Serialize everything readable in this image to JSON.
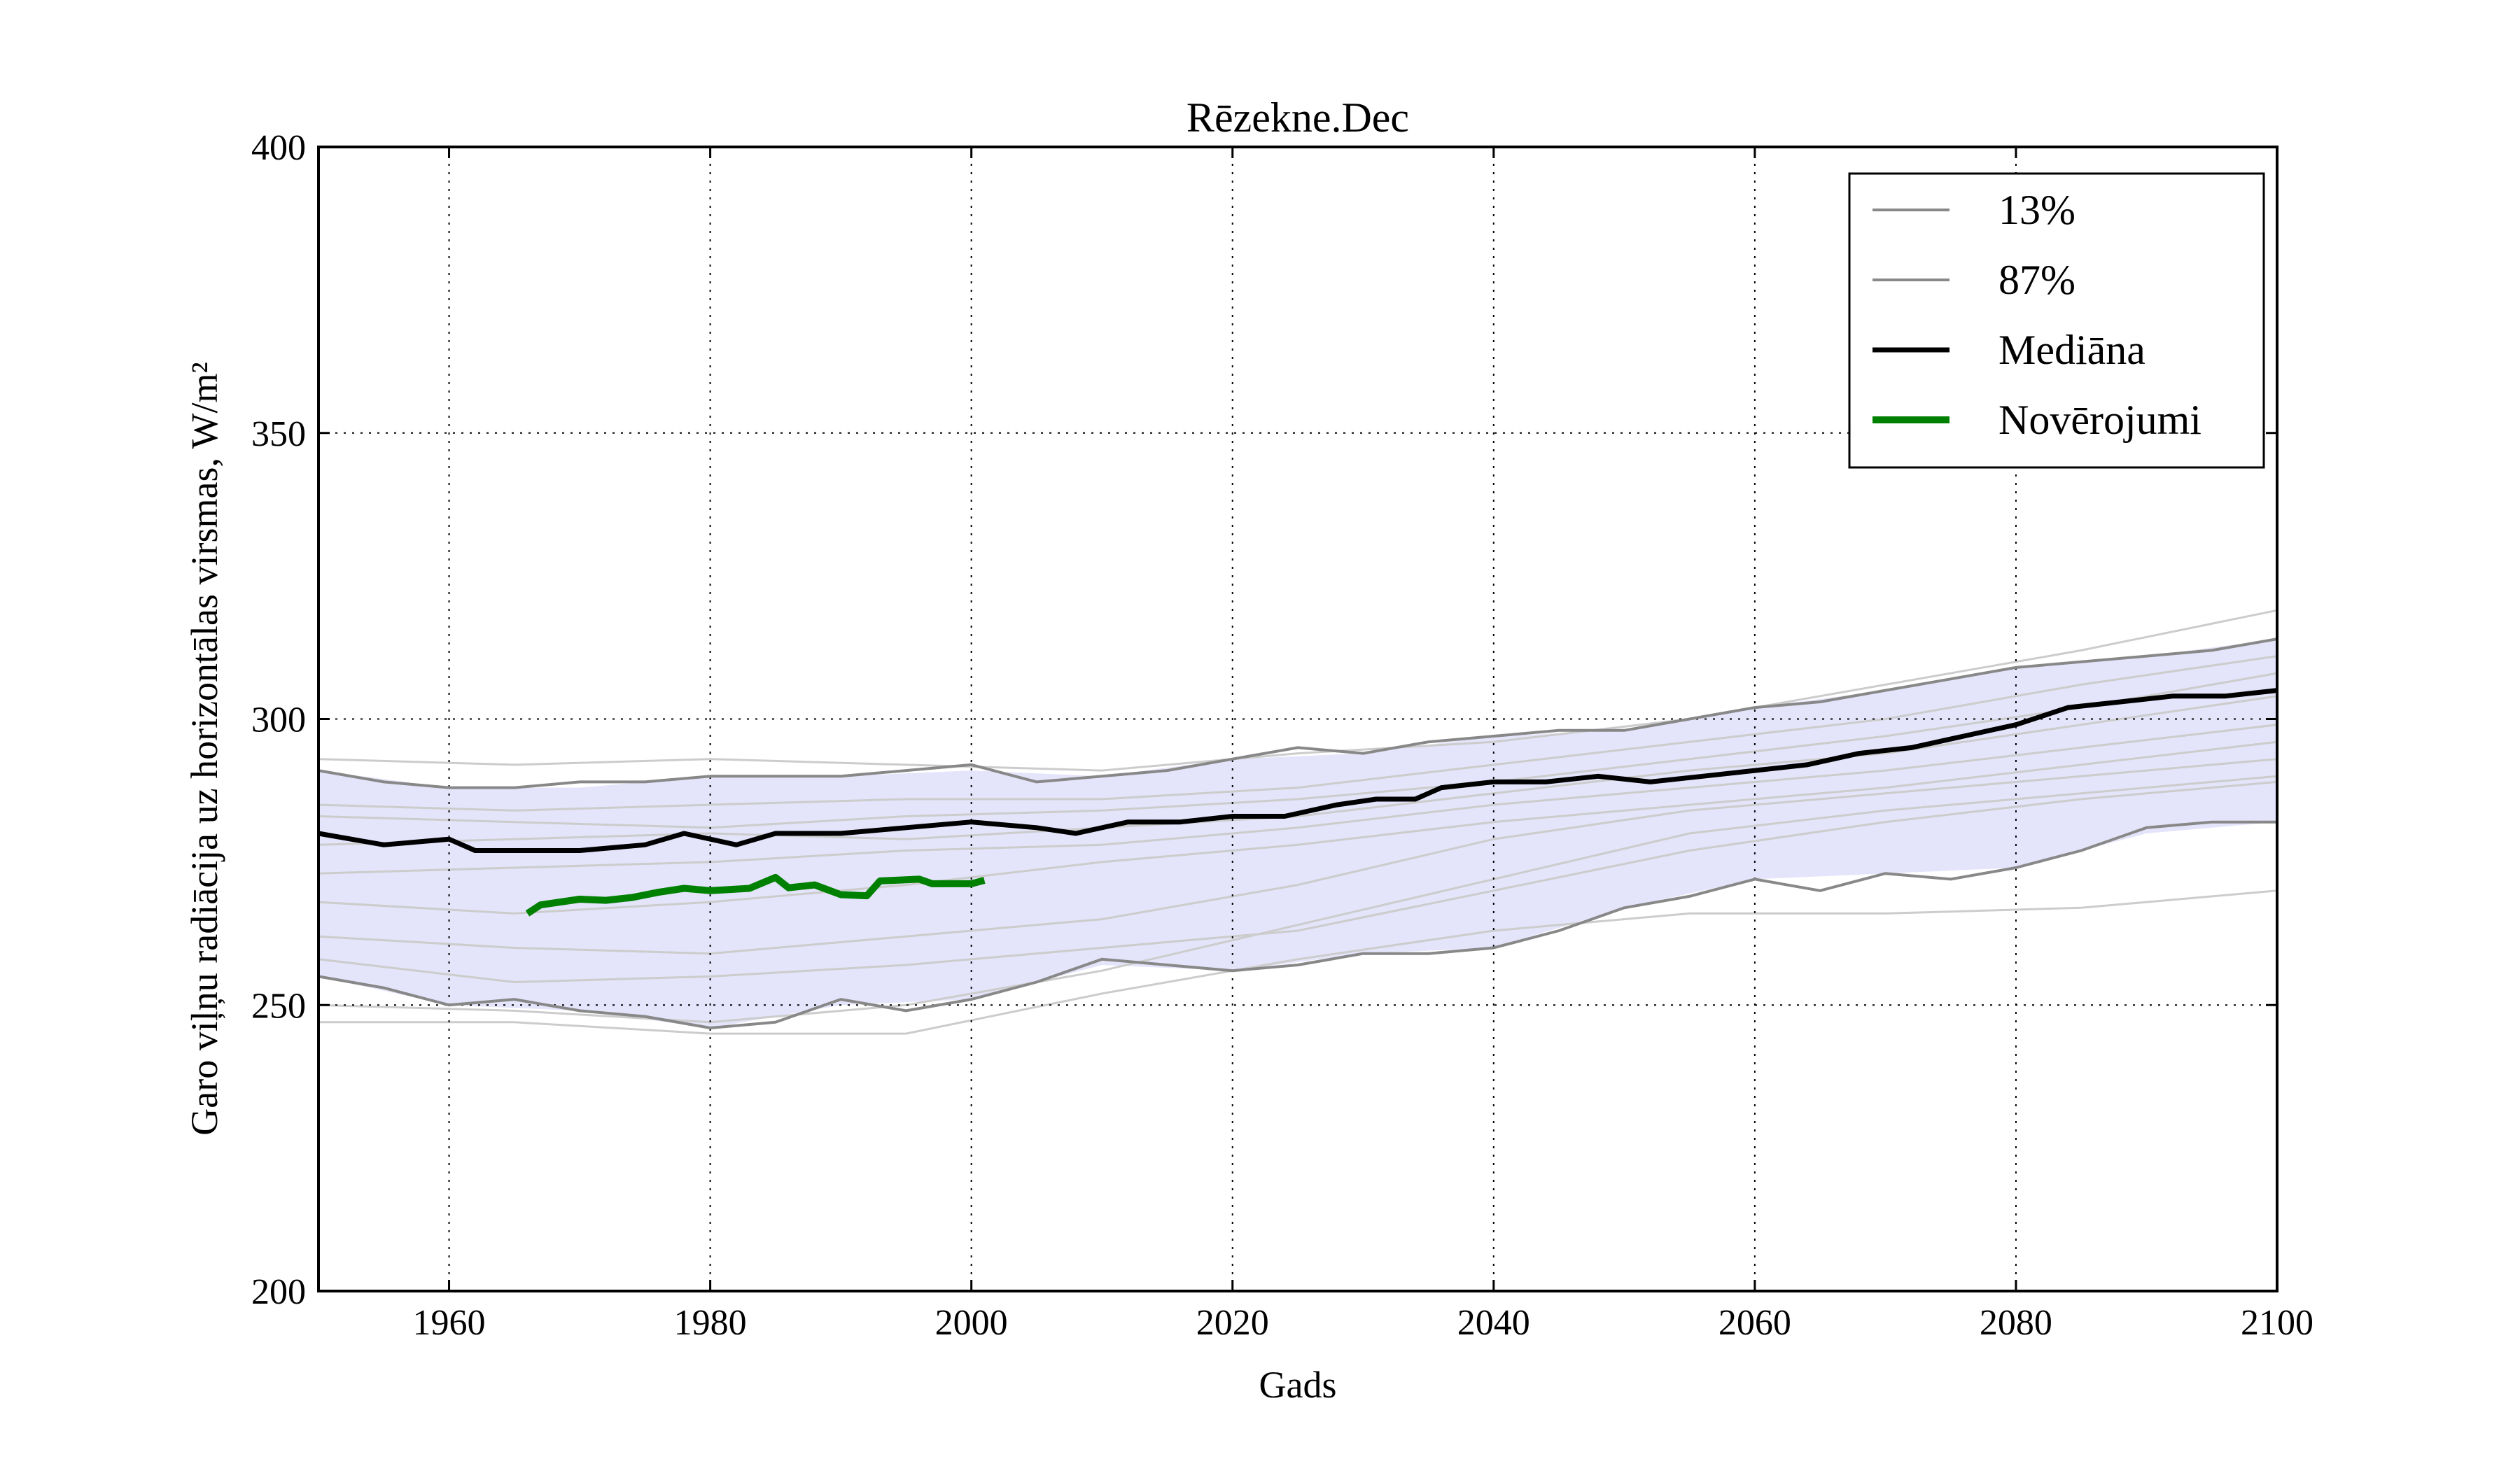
{
  "chart_data": {
    "type": "line",
    "title": "Rēzekne.Dec",
    "xlabel": "Gads",
    "ylabel": "Garo viļņu radiācija uz horizontālas virsmas, W/m²",
    "xlim": [
      1950,
      2100
    ],
    "ylim": [
      200,
      400
    ],
    "xticks": [
      1960,
      1980,
      2000,
      2020,
      2040,
      2060,
      2080,
      2100
    ],
    "yticks": [
      200,
      250,
      300,
      350,
      400
    ],
    "grid": true,
    "legend_position": "top-right",
    "legend": [
      "13%",
      "87%",
      "Mediāna",
      "Novērojumi"
    ],
    "colors": {
      "band": "#e4e4fb",
      "ensemble": "#cccccc",
      "percentile": "#888888",
      "median": "#000000",
      "observations": "#008000"
    },
    "band": {
      "x": [
        1950,
        1960,
        1970,
        1980,
        1990,
        2000,
        2010,
        2020,
        2030,
        2040,
        2050,
        2060,
        2070,
        2080,
        2090,
        2100
      ],
      "lower": [
        255,
        250,
        249,
        246,
        250,
        251,
        257,
        256,
        259,
        260,
        267,
        272,
        273,
        274,
        280,
        282
      ],
      "upper": [
        291,
        288,
        288,
        290,
        290,
        291,
        290,
        293,
        294,
        297,
        298,
        302,
        305,
        309,
        311,
        314
      ]
    },
    "series": [
      {
        "name": "13%",
        "x": [
          1950,
          1955,
          1960,
          1965,
          1970,
          1975,
          1980,
          1985,
          1990,
          1995,
          2000,
          2005,
          2010,
          2015,
          2020,
          2025,
          2030,
          2035,
          2040,
          2045,
          2050,
          2055,
          2060,
          2065,
          2070,
          2075,
          2080,
          2085,
          2090,
          2095,
          2100
        ],
        "values": [
          255,
          253,
          250,
          251,
          249,
          248,
          246,
          247,
          251,
          249,
          251,
          254,
          258,
          257,
          256,
          257,
          259,
          259,
          260,
          263,
          267,
          269,
          272,
          270,
          273,
          272,
          274,
          277,
          281,
          282,
          282
        ]
      },
      {
        "name": "87%",
        "x": [
          1950,
          1955,
          1960,
          1965,
          1970,
          1975,
          1980,
          1985,
          1990,
          1995,
          2000,
          2005,
          2010,
          2015,
          2020,
          2025,
          2030,
          2035,
          2040,
          2045,
          2050,
          2055,
          2060,
          2065,
          2070,
          2075,
          2080,
          2085,
          2090,
          2095,
          2100
        ],
        "values": [
          291,
          289,
          288,
          288,
          289,
          289,
          290,
          290,
          290,
          291,
          292,
          289,
          290,
          291,
          293,
          295,
          294,
          296,
          297,
          298,
          298,
          300,
          302,
          303,
          305,
          307,
          309,
          310,
          311,
          312,
          314
        ]
      },
      {
        "name": "Mediāna",
        "x": [
          1950,
          1955,
          1960,
          1962,
          1965,
          1970,
          1975,
          1978,
          1982,
          1985,
          1990,
          1995,
          2000,
          2005,
          2008,
          2012,
          2016,
          2020,
          2024,
          2028,
          2031,
          2034,
          2036,
          2040,
          2044,
          2048,
          2052,
          2056,
          2060,
          2064,
          2068,
          2072,
          2076,
          2080,
          2084,
          2088,
          2092,
          2096,
          2100
        ],
        "values": [
          280,
          278,
          279,
          277,
          277,
          277,
          278,
          280,
          278,
          280,
          280,
          281,
          282,
          281,
          280,
          282,
          282,
          283,
          283,
          285,
          286,
          286,
          288,
          289,
          289,
          290,
          289,
          290,
          291,
          292,
          294,
          295,
          297,
          299,
          302,
          303,
          304,
          304,
          305
        ]
      },
      {
        "name": "Novērojumi",
        "x": [
          1966,
          1967,
          1970,
          1972,
          1974,
          1976,
          1978,
          1980,
          1983,
          1985,
          1986,
          1988,
          1990,
          1992,
          1993,
          1996,
          1997,
          2000,
          2001
        ],
        "values": [
          266,
          267.5,
          268.5,
          268.3,
          268.8,
          269.7,
          270.4,
          270,
          270.4,
          272.3,
          270.5,
          271,
          269.3,
          269.1,
          271.7,
          272,
          271.2,
          271.2,
          271.8
        ]
      }
    ],
    "ensemble": [
      {
        "x": [
          1950,
          1965,
          1980,
          1995,
          2010,
          2025,
          2040,
          2055,
          2070,
          2085,
          2100
        ],
        "values": [
          293,
          292,
          293,
          292,
          291,
          294,
          296,
          300,
          306,
          312,
          319
        ]
      },
      {
        "x": [
          1950,
          1965,
          1980,
          1995,
          2010,
          2025,
          2040,
          2055,
          2070,
          2085,
          2100
        ],
        "values": [
          285,
          284,
          285,
          286,
          286,
          288,
          292,
          296,
          300,
          306,
          311
        ]
      },
      {
        "x": [
          1950,
          1965,
          1980,
          1995,
          2010,
          2025,
          2040,
          2055,
          2070,
          2085,
          2100
        ],
        "values": [
          283,
          282,
          281,
          283,
          284,
          286,
          289,
          293,
          297,
          302,
          308
        ]
      },
      {
        "x": [
          1950,
          1965,
          1980,
          1995,
          2010,
          2025,
          2040,
          2055,
          2070,
          2085,
          2100
        ],
        "values": [
          278,
          279,
          280,
          279,
          281,
          283,
          287,
          291,
          294,
          299,
          304
        ]
      },
      {
        "x": [
          1950,
          1965,
          1980,
          1995,
          2010,
          2025,
          2040,
          2055,
          2070,
          2085,
          2100
        ],
        "values": [
          273,
          274,
          275,
          277,
          278,
          281,
          285,
          288,
          291,
          295,
          299
        ]
      },
      {
        "x": [
          1950,
          1965,
          1980,
          1995,
          2010,
          2025,
          2040,
          2055,
          2070,
          2085,
          2100
        ],
        "values": [
          268,
          266,
          268,
          271,
          275,
          278,
          282,
          285,
          288,
          292,
          296
        ]
      },
      {
        "x": [
          1950,
          1965,
          1980,
          1995,
          2010,
          2025,
          2040,
          2055,
          2070,
          2085,
          2100
        ],
        "values": [
          262,
          260,
          259,
          262,
          265,
          271,
          279,
          284,
          287,
          290,
          293
        ]
      },
      {
        "x": [
          1950,
          1965,
          1980,
          1995,
          2010,
          2025,
          2040,
          2055,
          2070,
          2085,
          2100
        ],
        "values": [
          258,
          254,
          255,
          257,
          260,
          263,
          270,
          277,
          282,
          286,
          289
        ]
      },
      {
        "x": [
          1950,
          1965,
          1980,
          1995,
          2010,
          2025,
          2040,
          2055,
          2070,
          2085,
          2100
        ],
        "values": [
          247,
          247,
          245,
          245,
          252,
          258,
          263,
          266,
          266,
          267,
          270
        ]
      },
      {
        "x": [
          1950,
          1965,
          1980,
          1995,
          2010,
          2025,
          2040,
          2055,
          2070,
          2085,
          2100
        ],
        "values": [
          250,
          249,
          247,
          250,
          256,
          264,
          272,
          280,
          284,
          287,
          290
        ]
      }
    ]
  }
}
